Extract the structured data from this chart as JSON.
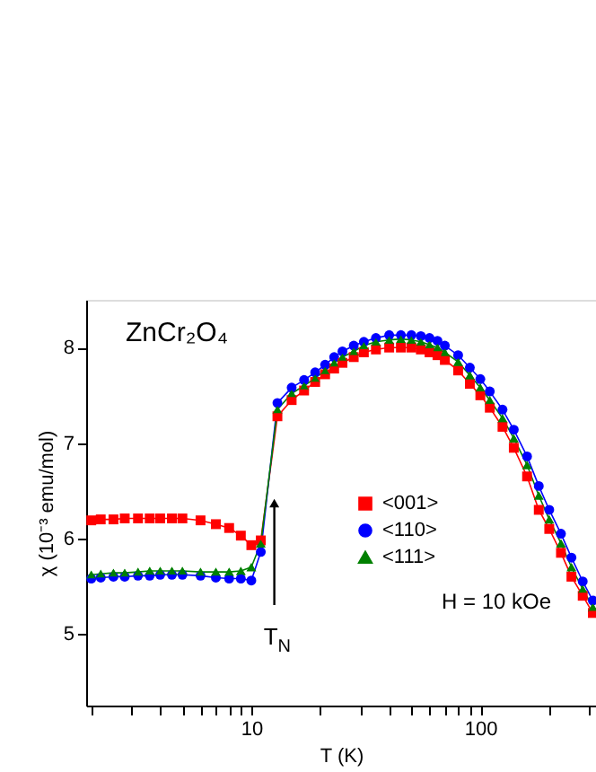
{
  "chart_data": {
    "type": "line",
    "xlabel": "T (K)",
    "ylabel": "χ (10⁻³ emu/mol)",
    "log": "x",
    "grid": false,
    "legend": "right",
    "line_style": "solid",
    "xlim": [
      1.9,
      320
    ],
    "ylim": [
      4.25,
      8.5
    ],
    "yticks": [
      5,
      6,
      7,
      8
    ],
    "xticks": [
      {
        "value": 2,
        "label": null
      },
      {
        "value": 3,
        "label": null
      },
      {
        "value": 4,
        "label": null
      },
      {
        "value": 5,
        "label": null
      },
      {
        "value": 6,
        "label": null
      },
      {
        "value": 7,
        "label": null
      },
      {
        "value": 8,
        "label": null
      },
      {
        "value": 9,
        "label": null
      },
      10,
      {
        "value": 20,
        "label": null
      },
      {
        "value": 30,
        "label": null
      },
      {
        "value": 40,
        "label": null
      },
      {
        "value": 50,
        "label": null
      },
      {
        "value": 60,
        "label": null
      },
      {
        "value": 70,
        "label": null
      },
      {
        "value": 80,
        "label": null
      },
      {
        "value": 90,
        "label": null
      },
      100,
      {
        "value": 200,
        "label": null
      },
      {
        "value": 300,
        "label": null
      }
    ],
    "x": [
      2,
      2.2,
      2.5,
      2.8,
      3.2,
      3.6,
      4,
      4.5,
      5,
      6,
      7,
      8,
      9,
      10,
      11,
      13,
      15,
      17,
      19,
      21,
      23,
      25,
      28,
      31,
      35,
      40,
      45,
      50,
      55,
      60,
      65,
      70,
      80,
      90,
      100,
      110,
      125,
      140,
      160,
      180,
      200,
      225,
      250,
      280,
      310
    ],
    "series": [
      {
        "name": "<001>",
        "color": "#ff0000",
        "marker": "square",
        "values": [
          6.19,
          6.2,
          6.2,
          6.21,
          6.21,
          6.21,
          6.21,
          6.21,
          6.21,
          6.19,
          6.15,
          6.11,
          6.03,
          5.93,
          5.98,
          7.28,
          7.45,
          7.55,
          7.64,
          7.72,
          7.78,
          7.84,
          7.9,
          7.95,
          7.98,
          8.0,
          8.0,
          8.0,
          7.98,
          7.95,
          7.92,
          7.87,
          7.76,
          7.62,
          7.5,
          7.37,
          7.17,
          6.95,
          6.65,
          6.3,
          6.1,
          5.85,
          5.6,
          5.4,
          5.22
        ]
      },
      {
        "name": "<110>",
        "color": "#0000ff",
        "marker": "circle",
        "values": [
          5.58,
          5.59,
          5.6,
          5.6,
          5.61,
          5.61,
          5.62,
          5.62,
          5.62,
          5.61,
          5.59,
          5.58,
          5.58,
          5.56,
          5.86,
          7.42,
          7.58,
          7.66,
          7.74,
          7.82,
          7.9,
          7.96,
          8.02,
          8.06,
          8.1,
          8.13,
          8.13,
          8.13,
          8.12,
          8.1,
          8.07,
          8.02,
          7.92,
          7.79,
          7.67,
          7.54,
          7.35,
          7.14,
          6.86,
          6.55,
          6.3,
          6.05,
          5.8,
          5.55,
          5.35
        ]
      },
      {
        "name": "<111>",
        "color": "#008000",
        "marker": "triangle",
        "values": [
          5.62,
          5.63,
          5.64,
          5.64,
          5.65,
          5.66,
          5.66,
          5.66,
          5.66,
          5.65,
          5.65,
          5.65,
          5.66,
          5.7,
          5.95,
          7.35,
          7.52,
          7.6,
          7.68,
          7.76,
          7.84,
          7.9,
          7.96,
          8.02,
          8.06,
          8.08,
          8.09,
          8.08,
          8.06,
          8.03,
          8.0,
          7.95,
          7.85,
          7.71,
          7.58,
          7.45,
          7.26,
          7.05,
          6.77,
          6.45,
          6.2,
          5.95,
          5.7,
          5.47,
          5.28
        ]
      }
    ],
    "annotations": [
      "ZnCr₂O₄",
      "H = 10 kOe",
      {
        "text": "T$_{N}$",
        "x": 12.6,
        "y": 6.37
      }
    ]
  }
}
